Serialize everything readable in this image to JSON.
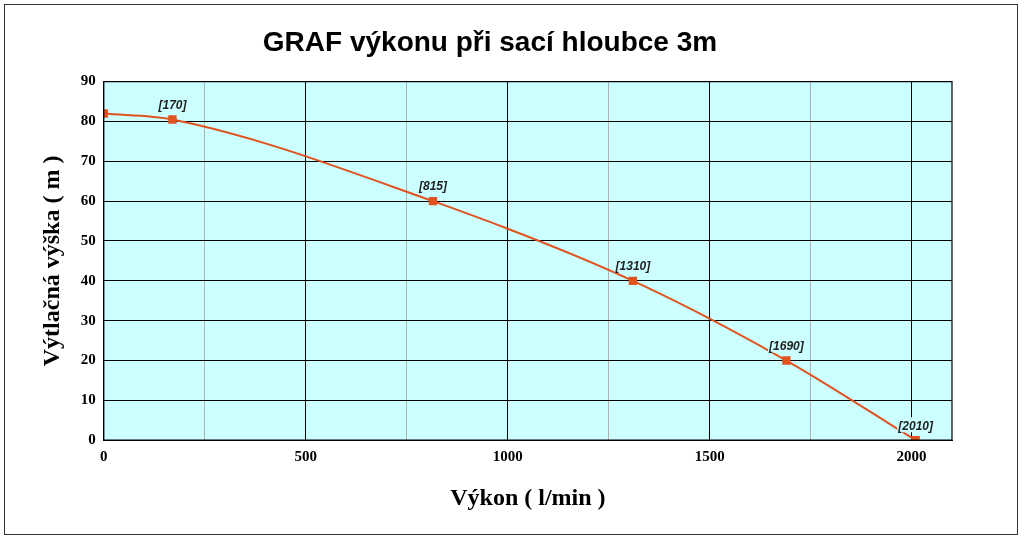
{
  "chart_data": {
    "type": "line",
    "title": "GRAF výkonu při sací hloubce 3m",
    "xlabel": "Výkon ( l/min )",
    "ylabel": "Výtlačná výška ( m )",
    "x": [
      0,
      170,
      815,
      1310,
      1690,
      2010
    ],
    "series": [
      {
        "color": "#e0531f",
        "values": [
          82,
          80.5,
          60,
          40,
          20,
          0
        ]
      }
    ],
    "annotations": [
      {
        "text": "[170]",
        "x": 170,
        "y": 80.5
      },
      {
        "text": "[815]",
        "x": 815,
        "y": 60
      },
      {
        "text": "[1310]",
        "x": 1310,
        "y": 40
      },
      {
        "text": "[1690]",
        "x": 1690,
        "y": 20
      },
      {
        "text": "[2010]",
        "x": 2010,
        "y": 0
      }
    ],
    "xlim": [
      0,
      2100
    ],
    "xticks": [
      0,
      {
        "value": 250,
        "label": null
      },
      500,
      {
        "value": 750,
        "label": null
      },
      1000,
      {
        "value": 1250,
        "label": null
      },
      1500,
      {
        "value": 1750,
        "label": null
      },
      2000
    ],
    "ylim": [
      0,
      90
    ],
    "yticks": [
      0,
      10,
      20,
      30,
      40,
      50,
      60,
      70,
      80,
      90
    ],
    "grid": true,
    "legend": false,
    "marker": "square",
    "line_style": "solid"
  }
}
